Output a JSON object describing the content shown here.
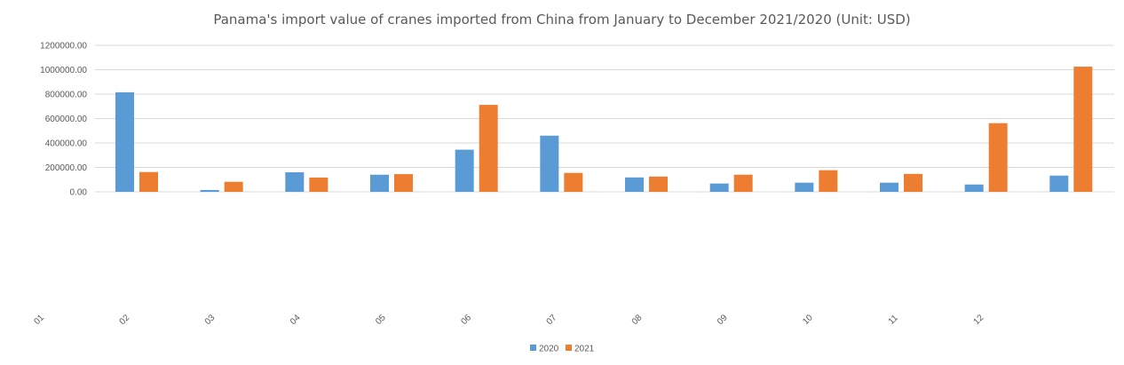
{
  "chart_data": {
    "type": "bar",
    "title": "Panama's import value of cranes imported from China from January to December 2021/2020 (Unit: USD)",
    "categories": [
      "01",
      "02",
      "03",
      "04",
      "05",
      "06",
      "07",
      "08",
      "09",
      "10",
      "11",
      "12"
    ],
    "series": [
      {
        "name": "2020",
        "color": "#5b9bd5",
        "values": [
          815000,
          15000,
          160000,
          140000,
          345000,
          460000,
          118000,
          68000,
          75000,
          75000,
          60000,
          133000
        ]
      },
      {
        "name": "2021",
        "color": "#ed7d31",
        "values": [
          162000,
          82000,
          117000,
          145000,
          712000,
          155000,
          125000,
          140000,
          177000,
          147000,
          562000,
          1025000
        ]
      }
    ],
    "ylim": [
      0,
      1200000
    ],
    "yticks": [
      "0.00",
      "200000.00",
      "400000.00",
      "600000.00",
      "800000.00",
      "1000000.00",
      "1200000.00"
    ],
    "ytick_values": [
      0,
      200000,
      400000,
      600000,
      800000,
      1000000,
      1200000
    ],
    "grid": true,
    "legend_position": "bottom"
  }
}
